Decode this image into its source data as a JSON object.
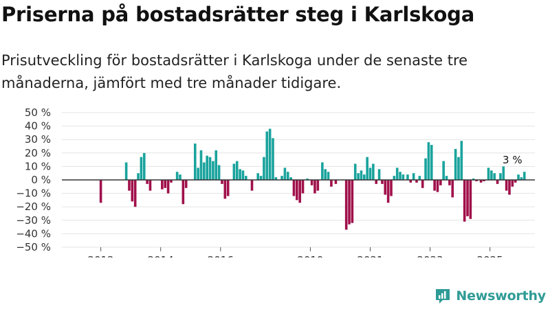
{
  "title": "Priserna på bostadsrätter steg i Karlskoga",
  "subtitle": "Prisutveckling för bostadsrätter i Karlskoga under de senaste tre månaderna, jämfört med tre månader tidigare.",
  "brand": "Newsworthy",
  "colors": {
    "positive": "#1aa39d",
    "negative": "#a0104b",
    "grid": "#e3e3e3",
    "zero": "#333333"
  },
  "chart_data": {
    "type": "bar",
    "title": "Priserna på bostadsrätter steg i Karlskoga",
    "xlabel": "",
    "ylabel": "",
    "ylim": [
      -50,
      50
    ],
    "yticks": [
      50,
      40,
      30,
      20,
      10,
      0,
      -10,
      -20,
      -30,
      -40,
      -50
    ],
    "ytick_labels": [
      "50 %",
      "40 %",
      "30 %",
      "20 %",
      "10 %",
      "0 %",
      "−10 %",
      "−20 %",
      "−30 %",
      "−40 %",
      "−50 %"
    ],
    "xticks": [
      {
        "label": "2012",
        "x": 2012.0
      },
      {
        "label": "2014",
        "x": 2014.0
      },
      {
        "label": "2016",
        "x": 2016.0
      },
      {
        "label": "2019",
        "x": 2019.0
      },
      {
        "label": "2021",
        "x": 2021.0
      },
      {
        "label": "2023",
        "x": 2023.0
      },
      {
        "label": "2025",
        "x": 2025.0
      }
    ],
    "x_range": [
      2010.7,
      2026.5
    ],
    "annotation": {
      "text": "3 %",
      "x": 2025.75,
      "y": 3
    },
    "bars": [
      {
        "x": 2012.0,
        "v": -17
      },
      {
        "x": 2012.85,
        "v": 13
      },
      {
        "x": 2012.95,
        "v": -8
      },
      {
        "x": 2013.05,
        "v": -16
      },
      {
        "x": 2013.15,
        "v": -20
      },
      {
        "x": 2013.25,
        "v": 5
      },
      {
        "x": 2013.35,
        "v": 17
      },
      {
        "x": 2013.45,
        "v": 20
      },
      {
        "x": 2013.55,
        "v": -3
      },
      {
        "x": 2013.65,
        "v": -8
      },
      {
        "x": 2014.05,
        "v": -7
      },
      {
        "x": 2014.15,
        "v": -6
      },
      {
        "x": 2014.25,
        "v": -10
      },
      {
        "x": 2014.35,
        "v": -2
      },
      {
        "x": 2014.55,
        "v": 6
      },
      {
        "x": 2014.65,
        "v": 4
      },
      {
        "x": 2014.75,
        "v": -18
      },
      {
        "x": 2014.85,
        "v": -6
      },
      {
        "x": 2015.15,
        "v": 27
      },
      {
        "x": 2015.25,
        "v": 9
      },
      {
        "x": 2015.35,
        "v": 22
      },
      {
        "x": 2015.45,
        "v": 13
      },
      {
        "x": 2015.55,
        "v": 18
      },
      {
        "x": 2015.65,
        "v": 17
      },
      {
        "x": 2015.75,
        "v": 14
      },
      {
        "x": 2015.85,
        "v": 22
      },
      {
        "x": 2015.95,
        "v": 11
      },
      {
        "x": 2016.05,
        "v": -3
      },
      {
        "x": 2016.15,
        "v": -14
      },
      {
        "x": 2016.25,
        "v": -12
      },
      {
        "x": 2016.45,
        "v": 12
      },
      {
        "x": 2016.55,
        "v": 14
      },
      {
        "x": 2016.65,
        "v": 8
      },
      {
        "x": 2016.75,
        "v": 7
      },
      {
        "x": 2016.85,
        "v": 3
      },
      {
        "x": 2017.05,
        "v": -8
      },
      {
        "x": 2017.25,
        "v": 5
      },
      {
        "x": 2017.35,
        "v": 3
      },
      {
        "x": 2017.45,
        "v": 17
      },
      {
        "x": 2017.55,
        "v": 36
      },
      {
        "x": 2017.65,
        "v": 38
      },
      {
        "x": 2017.75,
        "v": 31
      },
      {
        "x": 2017.85,
        "v": 2
      },
      {
        "x": 2018.05,
        "v": 3
      },
      {
        "x": 2018.15,
        "v": 9
      },
      {
        "x": 2018.25,
        "v": 6
      },
      {
        "x": 2018.35,
        "v": 2
      },
      {
        "x": 2018.45,
        "v": -12
      },
      {
        "x": 2018.55,
        "v": -15
      },
      {
        "x": 2018.65,
        "v": -17
      },
      {
        "x": 2018.75,
        "v": -10
      },
      {
        "x": 2018.9,
        "v": 1
      },
      {
        "x": 2019.05,
        "v": -4
      },
      {
        "x": 2019.15,
        "v": -10
      },
      {
        "x": 2019.25,
        "v": -8
      },
      {
        "x": 2019.4,
        "v": 13
      },
      {
        "x": 2019.5,
        "v": 8
      },
      {
        "x": 2019.6,
        "v": 6
      },
      {
        "x": 2019.7,
        "v": -5
      },
      {
        "x": 2019.85,
        "v": -3
      },
      {
        "x": 2020.2,
        "v": -37
      },
      {
        "x": 2020.3,
        "v": -33
      },
      {
        "x": 2020.4,
        "v": -32
      },
      {
        "x": 2020.5,
        "v": 12
      },
      {
        "x": 2020.6,
        "v": 5
      },
      {
        "x": 2020.7,
        "v": 7
      },
      {
        "x": 2020.8,
        "v": 4
      },
      {
        "x": 2020.9,
        "v": 17
      },
      {
        "x": 2021.0,
        "v": 9
      },
      {
        "x": 2021.1,
        "v": 12
      },
      {
        "x": 2021.2,
        "v": -3
      },
      {
        "x": 2021.3,
        "v": 8
      },
      {
        "x": 2021.4,
        "v": -3
      },
      {
        "x": 2021.5,
        "v": -11
      },
      {
        "x": 2021.6,
        "v": -17
      },
      {
        "x": 2021.7,
        "v": -12
      },
      {
        "x": 2021.8,
        "v": 3
      },
      {
        "x": 2021.9,
        "v": 9
      },
      {
        "x": 2022.0,
        "v": 6
      },
      {
        "x": 2022.1,
        "v": 4
      },
      {
        "x": 2022.25,
        "v": 4
      },
      {
        "x": 2022.35,
        "v": -2
      },
      {
        "x": 2022.45,
        "v": 5
      },
      {
        "x": 2022.55,
        "v": -2
      },
      {
        "x": 2022.65,
        "v": 3
      },
      {
        "x": 2022.75,
        "v": -6
      },
      {
        "x": 2022.85,
        "v": 16
      },
      {
        "x": 2022.95,
        "v": 28
      },
      {
        "x": 2023.05,
        "v": 26
      },
      {
        "x": 2023.15,
        "v": -8
      },
      {
        "x": 2023.25,
        "v": -9
      },
      {
        "x": 2023.35,
        "v": -4
      },
      {
        "x": 2023.45,
        "v": 14
      },
      {
        "x": 2023.55,
        "v": 3
      },
      {
        "x": 2023.65,
        "v": -4
      },
      {
        "x": 2023.75,
        "v": -13
      },
      {
        "x": 2023.85,
        "v": 23
      },
      {
        "x": 2023.95,
        "v": 17
      },
      {
        "x": 2024.05,
        "v": 29
      },
      {
        "x": 2024.15,
        "v": -31
      },
      {
        "x": 2024.25,
        "v": -27
      },
      {
        "x": 2024.35,
        "v": -29
      },
      {
        "x": 2024.45,
        "v": 1
      },
      {
        "x": 2024.55,
        "v": -1
      },
      {
        "x": 2024.7,
        "v": -2
      },
      {
        "x": 2024.8,
        "v": -1
      },
      {
        "x": 2024.95,
        "v": 9
      },
      {
        "x": 2025.05,
        "v": 7
      },
      {
        "x": 2025.15,
        "v": 5
      },
      {
        "x": 2025.25,
        "v": -3
      },
      {
        "x": 2025.35,
        "v": 5
      },
      {
        "x": 2025.45,
        "v": 10
      },
      {
        "x": 2025.55,
        "v": -8
      },
      {
        "x": 2025.65,
        "v": -11
      },
      {
        "x": 2025.75,
        "v": -5
      },
      {
        "x": 2025.85,
        "v": -2
      },
      {
        "x": 2025.95,
        "v": 4
      },
      {
        "x": 2026.05,
        "v": 2
      },
      {
        "x": 2026.15,
        "v": 6
      }
    ]
  }
}
